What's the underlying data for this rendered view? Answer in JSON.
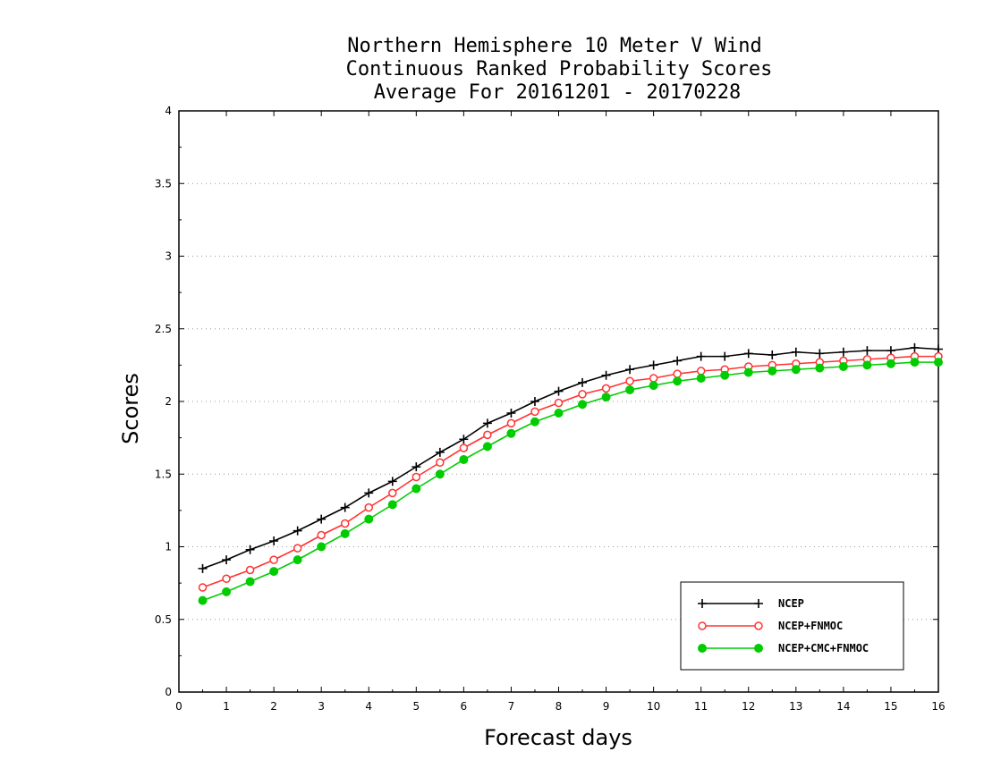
{
  "chart_data": {
    "type": "line",
    "title_lines": [
      "Northern Hemisphere 10 Meter V Wind",
      "Continuous Ranked Probability Scores",
      "Average For 20161201 - 20170228"
    ],
    "xlabel": "Forecast days",
    "ylabel": "Scores",
    "xlim": [
      0,
      16
    ],
    "ylim": [
      0,
      4
    ],
    "x_ticks": [
      "0",
      "1",
      "2",
      "3",
      "4",
      "5",
      "6",
      "7",
      "8",
      "9",
      "10",
      "11",
      "12",
      "13",
      "14",
      "15",
      "16"
    ],
    "y_ticks": [
      "0",
      "0.5",
      "1",
      "1.5",
      "2",
      "2.5",
      "3",
      "3.5",
      "4"
    ],
    "grid": "horizontal-dotted",
    "legend_position": "bottom-right",
    "x": [
      0.5,
      1,
      1.5,
      2,
      2.5,
      3,
      3.5,
      4,
      4.5,
      5,
      5.5,
      6,
      6.5,
      7,
      7.5,
      8,
      8.5,
      9,
      9.5,
      10,
      10.5,
      11,
      11.5,
      12,
      12.5,
      13,
      13.5,
      14,
      14.5,
      15,
      15.5,
      16
    ],
    "series": [
      {
        "name": "NCEP",
        "color": "#000000",
        "marker": "plus",
        "values": [
          0.85,
          0.91,
          0.98,
          1.04,
          1.11,
          1.19,
          1.27,
          1.37,
          1.45,
          1.55,
          1.65,
          1.74,
          1.85,
          1.92,
          2.0,
          2.07,
          2.13,
          2.18,
          2.22,
          2.25,
          2.28,
          2.31,
          2.31,
          2.33,
          2.32,
          2.34,
          2.33,
          2.34,
          2.35,
          2.35,
          2.37,
          2.36
        ]
      },
      {
        "name": "NCEP+FNMOC",
        "color": "#ff3333",
        "marker": "open-circle",
        "values": [
          0.72,
          0.78,
          0.84,
          0.91,
          0.99,
          1.08,
          1.16,
          1.27,
          1.37,
          1.48,
          1.58,
          1.68,
          1.77,
          1.85,
          1.93,
          1.99,
          2.05,
          2.09,
          2.14,
          2.16,
          2.19,
          2.21,
          2.22,
          2.24,
          2.25,
          2.26,
          2.27,
          2.28,
          2.29,
          2.3,
          2.31,
          2.31
        ]
      },
      {
        "name": "NCEP+CMC+FNMOC",
        "color": "#00cc00",
        "marker": "filled-circle",
        "values": [
          0.63,
          0.69,
          0.76,
          0.83,
          0.91,
          1.0,
          1.09,
          1.19,
          1.29,
          1.4,
          1.5,
          1.6,
          1.69,
          1.78,
          1.86,
          1.92,
          1.98,
          2.03,
          2.08,
          2.11,
          2.14,
          2.16,
          2.18,
          2.2,
          2.21,
          2.22,
          2.23,
          2.24,
          2.25,
          2.26,
          2.27,
          2.27
        ]
      }
    ]
  }
}
